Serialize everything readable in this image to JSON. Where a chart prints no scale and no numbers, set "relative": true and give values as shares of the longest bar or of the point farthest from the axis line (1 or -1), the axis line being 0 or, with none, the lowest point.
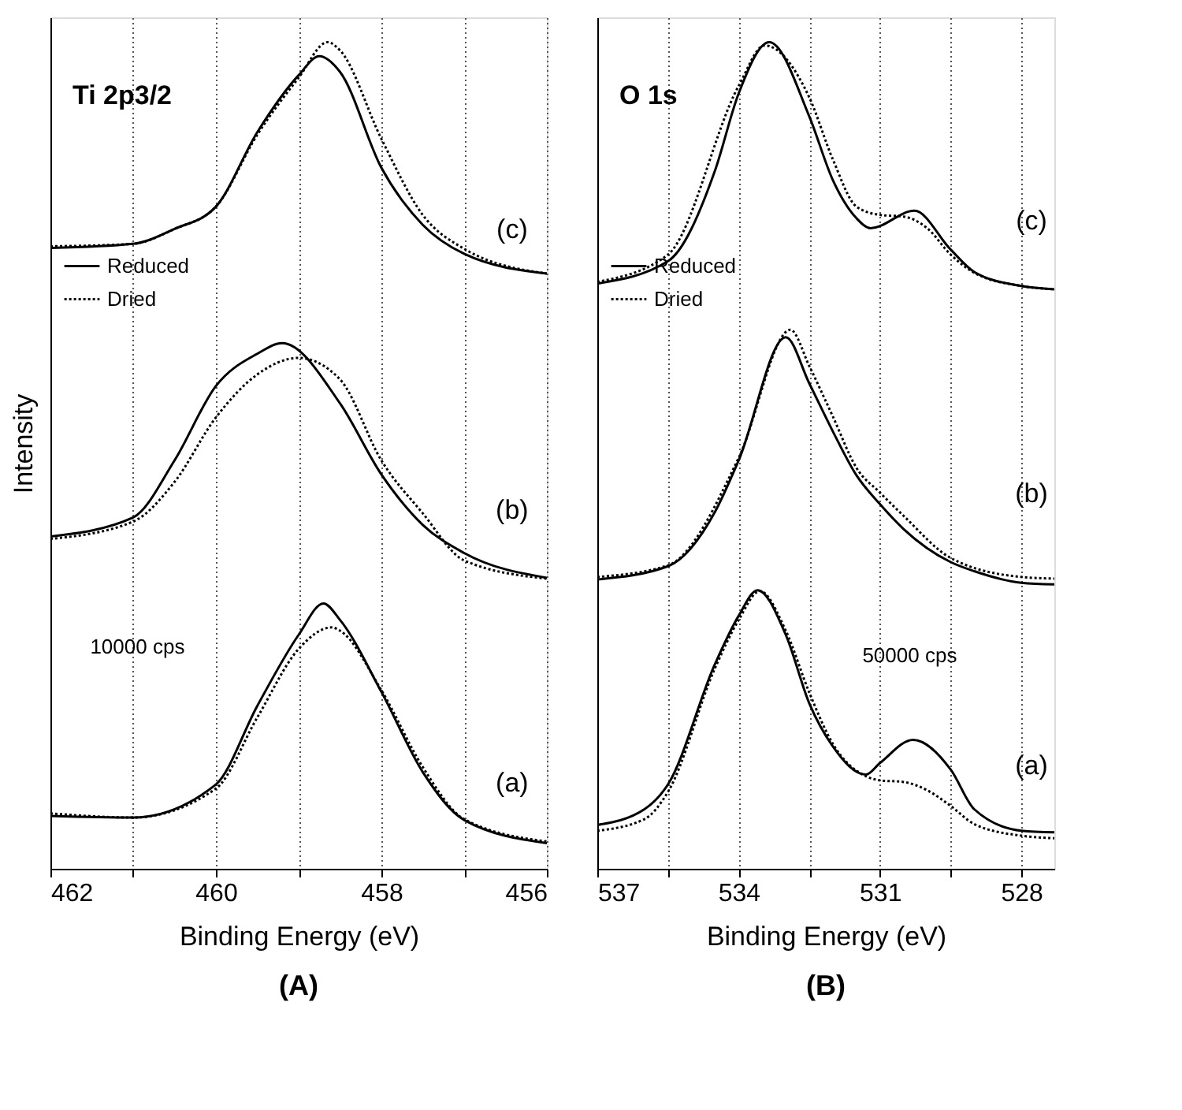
{
  "chart_data": [
    {
      "type": "line",
      "title": "Ti 2p3/2",
      "xlabel": "Binding Energy (eV)",
      "ylabel": "Intensity",
      "relative": true,
      "xlim": [
        462,
        456
      ],
      "xticks": [
        462,
        {
          "value": 461,
          "label": null
        },
        460,
        {
          "value": 459,
          "label": null
        },
        458,
        {
          "value": 457,
          "label": null
        },
        456
      ],
      "grid": "x",
      "legend": "left",
      "tick_labels": "x",
      "series": [
        {
          "name": "Reduced",
          "color": "#000000",
          "line_style": "solid",
          "x": [
            462,
            461,
            460.5,
            460,
            459.5,
            459,
            458.75,
            458.5,
            458,
            457.5,
            457,
            456
          ],
          "values": [
            0.751,
            0.756,
            0.774,
            0.801,
            0.891,
            0.96,
            0.983,
            0.964,
            0.848,
            0.779,
            0.744,
            0.72
          ]
        },
        {
          "name": "Dried",
          "color": "#000000",
          "line_style": "dotted",
          "x": [
            462,
            461,
            460.5,
            460,
            459.5,
            459,
            458.65,
            458.5,
            458,
            457.5,
            457,
            456
          ],
          "values": [
            0.753,
            0.756,
            0.774,
            0.801,
            0.888,
            0.957,
            1.0,
            0.99,
            0.883,
            0.791,
            0.75,
            0.72
          ]
        },
        {
          "color": "#000000",
          "line_style": "solid",
          "x": [
            462,
            461,
            460.5,
            460,
            459.5,
            459.2,
            458.5,
            458,
            457.5,
            457,
            456
          ],
          "values": [
            0.402,
            0.425,
            0.494,
            0.584,
            0.623,
            0.636,
            0.563,
            0.477,
            0.416,
            0.382,
            0.352
          ]
        },
        {
          "color": "#000000",
          "line_style": "dotted",
          "x": [
            462,
            461,
            460.5,
            460,
            459.5,
            459,
            458.5,
            458,
            457.5,
            457,
            456
          ],
          "values": [
            0.399,
            0.42,
            0.468,
            0.546,
            0.598,
            0.618,
            0.592,
            0.494,
            0.43,
            0.373,
            0.351
          ]
        },
        {
          "color": "#000000",
          "line_style": "solid",
          "x": [
            462,
            461,
            460,
            459.5,
            459,
            458.7,
            458.5,
            458,
            457.5,
            457,
            456
          ],
          "values": [
            0.064,
            0.062,
            0.102,
            0.197,
            0.283,
            0.321,
            0.301,
            0.214,
            0.117,
            0.059,
            0.031
          ]
        },
        {
          "color": "#000000",
          "line_style": "dotted",
          "x": [
            462,
            461,
            460,
            459.5,
            459,
            458.6,
            458.5,
            458,
            457.5,
            457,
            456
          ],
          "values": [
            0.067,
            0.062,
            0.097,
            0.183,
            0.266,
            0.292,
            0.288,
            0.216,
            0.123,
            0.06,
            0.033
          ]
        }
      ],
      "annotations": [
        "(c)",
        "(b)",
        "(a)",
        "10000 cps",
        "(A)"
      ]
    },
    {
      "type": "line",
      "title": "O 1s",
      "xlabel": "Binding Energy (eV)",
      "relative": true,
      "xlim": [
        537,
        527.3
      ],
      "xticks": [
        537,
        {
          "value": 535.5,
          "label": null
        },
        534,
        {
          "value": 532.5,
          "label": null
        },
        531,
        {
          "value": 529.5,
          "label": null
        },
        528
      ],
      "grid": "x",
      "legend": "left",
      "tick_labels": "x",
      "series": [
        {
          "name": "Reduced",
          "color": "#000000",
          "line_style": "solid",
          "x": [
            537,
            535.5,
            534.5,
            534,
            533.35,
            532.5,
            532,
            531.5,
            531.2,
            530.27,
            529.5,
            529,
            528,
            527.3
          ],
          "values": [
            0.708,
            0.735,
            0.845,
            0.938,
            1.0,
            0.91,
            0.833,
            0.787,
            0.775,
            0.796,
            0.749,
            0.722,
            0.705,
            0.701
          ]
        },
        {
          "name": "Dried",
          "color": "#000000",
          "line_style": "dotted",
          "x": [
            537,
            535.5,
            534,
            533.45,
            532.5,
            532,
            531.5,
            531,
            530.5,
            530,
            529.5,
            529,
            528,
            527.3
          ],
          "values": [
            0.71,
            0.743,
            0.947,
            0.996,
            0.933,
            0.858,
            0.801,
            0.791,
            0.789,
            0.775,
            0.743,
            0.721,
            0.705,
            0.701
          ]
        },
        {
          "color": "#000000",
          "line_style": "solid",
          "x": [
            537,
            535.5,
            534.5,
            534,
            533,
            532.5,
            532,
            531.5,
            531,
            530.5,
            529.5,
            529,
            528,
            527.3
          ],
          "values": [
            0.35,
            0.366,
            0.432,
            0.494,
            0.643,
            0.587,
            0.529,
            0.476,
            0.441,
            0.411,
            0.371,
            0.36,
            0.346,
            0.344
          ]
        },
        {
          "color": "#000000",
          "line_style": "dotted",
          "x": [
            537,
            535.5,
            534,
            532.9,
            532.5,
            532,
            531.5,
            531,
            530.5,
            529.5,
            528,
            527.3
          ],
          "values": [
            0.353,
            0.367,
            0.497,
            0.652,
            0.608,
            0.547,
            0.485,
            0.455,
            0.427,
            0.376,
            0.353,
            0.351
          ]
        },
        {
          "color": "#000000",
          "line_style": "solid",
          "x": [
            537,
            536,
            535.5,
            534.5,
            534,
            533.6,
            533,
            532.5,
            532,
            531.3,
            531,
            530.3,
            529.5,
            529,
            528,
            527.3
          ],
          "values": [
            0.053,
            0.072,
            0.102,
            0.248,
            0.306,
            0.337,
            0.283,
            0.2,
            0.148,
            0.114,
            0.128,
            0.156,
            0.12,
            0.072,
            0.046,
            0.044
          ]
        },
        {
          "color": "#000000",
          "line_style": "dotted",
          "x": [
            537,
            536,
            535.5,
            534.5,
            534,
            533.55,
            533,
            532.5,
            532,
            531.3,
            531,
            530.5,
            530,
            529.5,
            529,
            528,
            527.3
          ],
          "values": [
            0.046,
            0.06,
            0.093,
            0.243,
            0.301,
            0.336,
            0.288,
            0.213,
            0.151,
            0.112,
            0.107,
            0.105,
            0.095,
            0.076,
            0.054,
            0.04,
            0.037
          ]
        }
      ],
      "annotations": [
        "(c)",
        "(b)",
        "(a)",
        "50000 cps",
        "(B)"
      ]
    }
  ]
}
